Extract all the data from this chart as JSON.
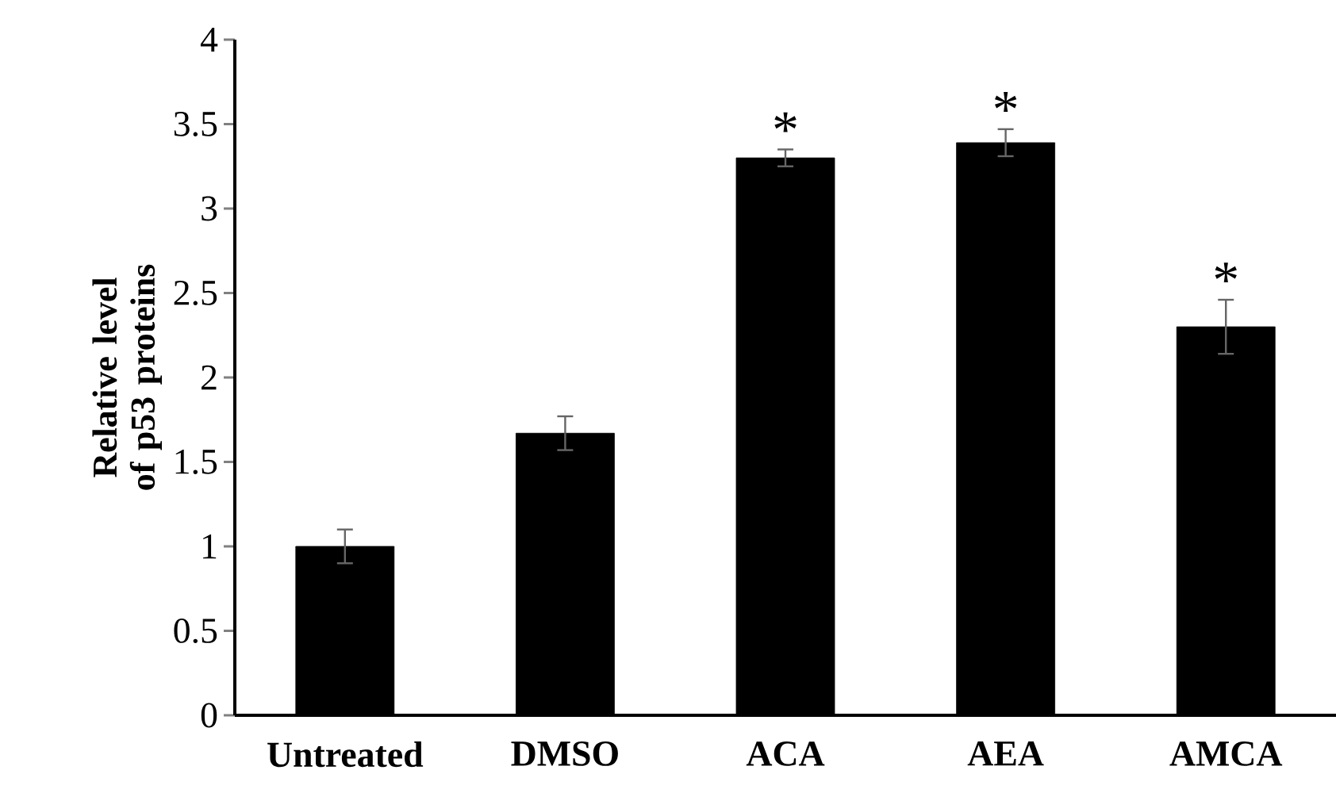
{
  "chart_data": {
    "type": "bar",
    "ylabel": "Relative level of p53 proteins",
    "categories": [
      "Untreated",
      "DMSO",
      "ACA",
      "AEA",
      "AMCA"
    ],
    "values": [
      1.0,
      1.67,
      3.3,
      3.39,
      2.3
    ],
    "errors": [
      0.1,
      0.1,
      0.05,
      0.08,
      0.16
    ],
    "color": "#000000",
    "ylim": [
      0,
      4
    ],
    "yticks": [
      0,
      0.5,
      1,
      1.5,
      2,
      2.5,
      3,
      3.5,
      4
    ],
    "annotations": [
      {
        "text": "*",
        "x": "ACA",
        "y": 3.35
      },
      {
        "text": "*",
        "x": "AEA",
        "y": 3.47
      },
      {
        "text": "*",
        "x": "AMCA",
        "y": 2.46
      }
    ]
  }
}
